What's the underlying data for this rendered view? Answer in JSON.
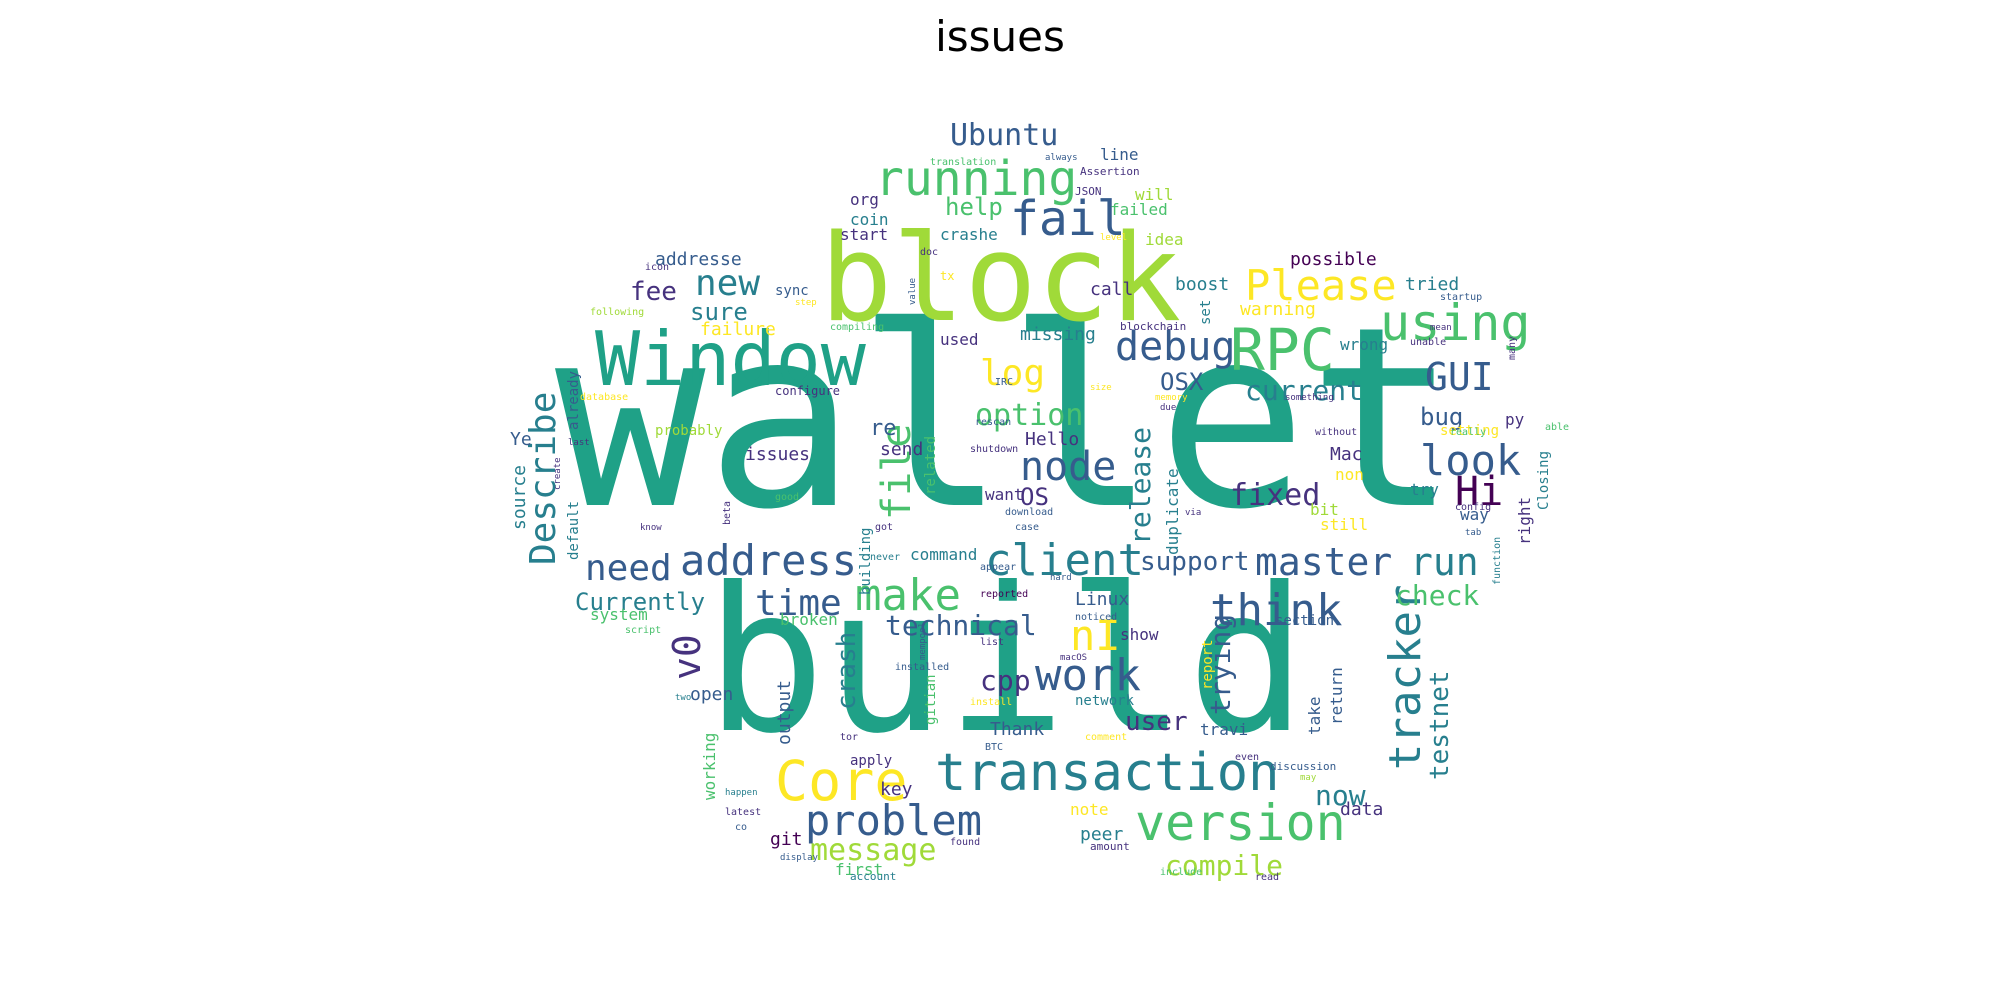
{
  "title": "issues",
  "palette": {
    "yellow": "#fde725",
    "lime": "#a0da39",
    "green": "#4ac16d",
    "teal": "#1fa187",
    "cyan": "#277f8e",
    "blue": "#365c8d",
    "indigo": "#46327e",
    "purple": "#440154"
  },
  "words": [
    {
      "text": "wallet",
      "weight": 1.0,
      "color": "teal"
    },
    {
      "text": "build",
      "weight": 0.86,
      "color": "teal"
    },
    {
      "text": "block",
      "weight": 0.6,
      "color": "lime"
    },
    {
      "text": "Window",
      "weight": 0.42,
      "color": "teal"
    },
    {
      "text": "transaction",
      "weight": 0.34,
      "color": "cyan"
    },
    {
      "text": "version",
      "weight": 0.3,
      "color": "green"
    },
    {
      "text": "problem",
      "weight": 0.28,
      "color": "blue"
    },
    {
      "text": "Core",
      "weight": 0.34,
      "color": "yellow"
    },
    {
      "text": "running",
      "weight": 0.3,
      "color": "green"
    },
    {
      "text": "RPC",
      "weight": 0.34,
      "color": "green"
    },
    {
      "text": "using",
      "weight": 0.3,
      "color": "green"
    },
    {
      "text": "Please",
      "weight": 0.26,
      "color": "yellow"
    },
    {
      "text": "fail",
      "weight": 0.28,
      "color": "blue"
    },
    {
      "text": "debug",
      "weight": 0.24,
      "color": "blue"
    },
    {
      "text": "address",
      "weight": 0.26,
      "color": "blue"
    },
    {
      "text": "client",
      "weight": 0.28,
      "color": "cyan"
    },
    {
      "text": "make",
      "weight": 0.28,
      "color": "green"
    },
    {
      "text": "master",
      "weight": 0.24,
      "color": "blue"
    },
    {
      "text": "think",
      "weight": 0.26,
      "color": "blue"
    },
    {
      "text": "work",
      "weight": 0.26,
      "color": "blue"
    },
    {
      "text": "node",
      "weight": 0.22,
      "color": "blue"
    },
    {
      "text": "look",
      "weight": 0.22,
      "color": "blue"
    },
    {
      "text": "run",
      "weight": 0.22,
      "color": "cyan"
    },
    {
      "text": "tracker",
      "weight": 0.24,
      "color": "cyan"
    },
    {
      "text": "Describe",
      "weight": 0.2,
      "color": "cyan"
    },
    {
      "text": "file",
      "weight": 0.24,
      "color": "green"
    },
    {
      "text": "new",
      "weight": 0.2,
      "color": "cyan"
    },
    {
      "text": "need",
      "weight": 0.2,
      "color": "blue"
    },
    {
      "text": "time",
      "weight": 0.2,
      "color": "blue"
    },
    {
      "text": "log",
      "weight": 0.2,
      "color": "yellow"
    },
    {
      "text": "GUI",
      "weight": 0.2,
      "color": "blue"
    },
    {
      "text": "Hi",
      "weight": 0.2,
      "color": "purple"
    },
    {
      "text": "v0",
      "weight": 0.2,
      "color": "indigo"
    },
    {
      "text": "nI",
      "weight": 0.2,
      "color": "yellow"
    },
    {
      "text": "Ubuntu",
      "weight": 0.16,
      "color": "blue"
    },
    {
      "text": "option",
      "weight": 0.16,
      "color": "green"
    },
    {
      "text": "message",
      "weight": 0.16,
      "color": "lime"
    },
    {
      "text": "release",
      "weight": 0.16,
      "color": "cyan"
    },
    {
      "text": "fixed",
      "weight": 0.15,
      "color": "indigo"
    },
    {
      "text": "current",
      "weight": 0.14,
      "color": "cyan"
    },
    {
      "text": "support",
      "weight": 0.14,
      "color": "blue"
    },
    {
      "text": "technical",
      "weight": 0.14,
      "color": "blue"
    },
    {
      "text": "Currently",
      "weight": 0.13,
      "color": "cyan"
    },
    {
      "text": "trying",
      "weight": 0.14,
      "color": "blue"
    },
    {
      "text": "compile",
      "weight": 0.14,
      "color": "lime"
    },
    {
      "text": "testnet",
      "weight": 0.13,
      "color": "cyan"
    },
    {
      "text": "check",
      "weight": 0.13,
      "color": "green"
    },
    {
      "text": "crash",
      "weight": 0.13,
      "color": "cyan"
    },
    {
      "text": "cpp",
      "weight": 0.13,
      "color": "indigo"
    },
    {
      "text": "user",
      "weight": 0.13,
      "color": "indigo"
    },
    {
      "text": "now",
      "weight": 0.13,
      "color": "cyan"
    },
    {
      "text": "fee",
      "weight": 0.12,
      "color": "indigo"
    },
    {
      "text": "sure",
      "weight": 0.12,
      "color": "cyan"
    },
    {
      "text": "OSX",
      "weight": 0.12,
      "color": "blue"
    },
    {
      "text": "OS",
      "weight": 0.12,
      "color": "indigo"
    },
    {
      "text": "help",
      "weight": 0.11,
      "color": "green"
    },
    {
      "text": "bug",
      "weight": 0.11,
      "color": "blue"
    },
    {
      "text": "re",
      "weight": 0.1,
      "color": "blue"
    },
    {
      "text": "Mac",
      "weight": 0.08,
      "color": "indigo"
    },
    {
      "text": "Linux",
      "weight": 0.08,
      "color": "blue"
    },
    {
      "text": "Thank",
      "weight": 0.08,
      "color": "blue"
    },
    {
      "text": "key",
      "weight": 0.08,
      "color": "indigo"
    },
    {
      "text": "peer",
      "weight": 0.08,
      "color": "cyan"
    },
    {
      "text": "data",
      "weight": 0.08,
      "color": "indigo"
    },
    {
      "text": "git",
      "weight": 0.08,
      "color": "purple"
    },
    {
      "text": "send",
      "weight": 0.08,
      "color": "indigo"
    },
    {
      "text": "Hello",
      "weight": 0.08,
      "color": "indigo"
    },
    {
      "text": "issues",
      "weight": 0.08,
      "color": "indigo"
    },
    {
      "text": "open",
      "weight": 0.08,
      "color": "blue"
    },
    {
      "text": "output",
      "weight": 0.08,
      "color": "blue"
    },
    {
      "text": "working",
      "weight": 0.07,
      "color": "green"
    },
    {
      "text": "source",
      "weight": 0.08,
      "color": "cyan"
    },
    {
      "text": "Ye",
      "weight": 0.08,
      "color": "blue"
    },
    {
      "text": "addresse",
      "weight": 0.08,
      "color": "blue"
    },
    {
      "text": "failure",
      "weight": 0.08,
      "color": "yellow"
    },
    {
      "text": "used",
      "weight": 0.08,
      "color": "indigo"
    },
    {
      "text": "missing",
      "weight": 0.08,
      "color": "cyan"
    },
    {
      "text": "call",
      "weight": 0.08,
      "color": "indigo"
    },
    {
      "text": "boost",
      "weight": 0.08,
      "color": "cyan"
    },
    {
      "text": "warning",
      "weight": 0.07,
      "color": "yellow"
    },
    {
      "text": "tried",
      "weight": 0.08,
      "color": "cyan"
    },
    {
      "text": "possible",
      "weight": 0.08,
      "color": "purple"
    },
    {
      "text": "idea",
      "weight": 0.08,
      "color": "lime"
    },
    {
      "text": "will",
      "weight": 0.07,
      "color": "lime"
    },
    {
      "text": "failed",
      "weight": 0.07,
      "color": "green"
    },
    {
      "text": "line",
      "weight": 0.07,
      "color": "blue"
    },
    {
      "text": "org",
      "weight": 0.07,
      "color": "indigo"
    },
    {
      "text": "coin",
      "weight": 0.07,
      "color": "cyan"
    },
    {
      "text": "start",
      "weight": 0.07,
      "color": "indigo"
    },
    {
      "text": "crashe",
      "weight": 0.07,
      "color": "cyan"
    },
    {
      "text": "sync",
      "weight": 0.06,
      "color": "blue"
    },
    {
      "text": "wrong",
      "weight": 0.07,
      "color": "cyan"
    },
    {
      "text": "py",
      "weight": 0.07,
      "color": "indigo"
    },
    {
      "text": "non",
      "weight": 0.07,
      "color": "yellow"
    },
    {
      "text": "bit",
      "weight": 0.07,
      "color": "lime"
    },
    {
      "text": "still",
      "weight": 0.07,
      "color": "yellow"
    },
    {
      "text": "way",
      "weight": 0.07,
      "color": "blue"
    },
    {
      "text": "try",
      "weight": 0.07,
      "color": "cyan"
    },
    {
      "text": "command",
      "weight": 0.07,
      "color": "cyan"
    },
    {
      "text": "want",
      "weight": 0.07,
      "color": "indigo"
    },
    {
      "text": "show",
      "weight": 0.07,
      "color": "indigo"
    },
    {
      "text": "broken",
      "weight": 0.07,
      "color": "green"
    },
    {
      "text": "system",
      "weight": 0.07,
      "color": "green"
    },
    {
      "text": "network",
      "weight": 0.06,
      "color": "cyan"
    },
    {
      "text": "travi",
      "weight": 0.07,
      "color": "blue"
    },
    {
      "text": "section",
      "weight": 0.06,
      "color": "blue"
    },
    {
      "text": "note",
      "weight": 0.07,
      "color": "yellow"
    },
    {
      "text": "first",
      "weight": 0.07,
      "color": "green"
    },
    {
      "text": "apply",
      "weight": 0.06,
      "color": "indigo"
    },
    {
      "text": "probably",
      "weight": 0.06,
      "color": "lime"
    },
    {
      "text": "set",
      "weight": 0.06,
      "color": "cyan"
    },
    {
      "text": "setting",
      "weight": 0.06,
      "color": "yellow"
    },
    {
      "text": "right",
      "weight": 0.07,
      "color": "indigo"
    },
    {
      "text": "Closing",
      "weight": 0.06,
      "color": "cyan"
    },
    {
      "text": "already",
      "weight": 0.06,
      "color": "blue"
    },
    {
      "text": "default",
      "weight": 0.06,
      "color": "cyan"
    },
    {
      "text": "duplicate",
      "weight": 0.07,
      "color": "cyan"
    },
    {
      "text": "building",
      "weight": 0.06,
      "color": "cyan"
    },
    {
      "text": "related",
      "weight": 0.06,
      "color": "green"
    },
    {
      "text": "gitian",
      "weight": 0.06,
      "color": "green"
    },
    {
      "text": "report",
      "weight": 0.06,
      "color": "yellow"
    },
    {
      "text": "take",
      "weight": 0.06,
      "color": "blue"
    },
    {
      "text": "return",
      "weight": 0.06,
      "color": "blue"
    },
    {
      "text": "configure",
      "weight": 0.05,
      "color": "indigo"
    },
    {
      "text": "tx",
      "weight": 0.05,
      "color": "yellow"
    },
    {
      "text": "Assertion",
      "weight": 0.04,
      "color": "indigo"
    },
    {
      "text": "JSON",
      "weight": 0.04,
      "color": "indigo"
    },
    {
      "text": "translation",
      "weight": 0.04,
      "color": "green"
    },
    {
      "text": "always",
      "weight": 0.04,
      "color": "blue"
    },
    {
      "text": "blockchain",
      "weight": 0.04,
      "color": "indigo"
    },
    {
      "text": "compiling",
      "weight": 0.04,
      "color": "green"
    },
    {
      "text": "following",
      "weight": 0.04,
      "color": "lime"
    },
    {
      "text": "database",
      "weight": 0.04,
      "color": "yellow"
    },
    {
      "text": "shutdown",
      "weight": 0.04,
      "color": "indigo"
    },
    {
      "text": "download",
      "weight": 0.04,
      "color": "blue"
    },
    {
      "text": "good",
      "weight": 0.04,
      "color": "green"
    },
    {
      "text": "beta",
      "weight": 0.04,
      "color": "indigo"
    },
    {
      "text": "never",
      "weight": 0.04,
      "color": "cyan"
    },
    {
      "text": "appear",
      "weight": 0.04,
      "color": "blue"
    },
    {
      "text": "reported",
      "weight": 0.04,
      "color": "purple"
    },
    {
      "text": "script",
      "weight": 0.04,
      "color": "green"
    },
    {
      "text": "install",
      "weight": 0.04,
      "color": "yellow"
    },
    {
      "text": "comment",
      "weight": 0.04,
      "color": "yellow"
    },
    {
      "text": "discussion",
      "weight": 0.04,
      "color": "blue"
    },
    {
      "text": "amount",
      "weight": 0.04,
      "color": "indigo"
    },
    {
      "text": "include",
      "weight": 0.04,
      "color": "green"
    },
    {
      "text": "read",
      "weight": 0.04,
      "color": "indigo"
    },
    {
      "text": "account",
      "weight": 0.04,
      "color": "cyan"
    },
    {
      "text": "found",
      "weight": 0.04,
      "color": "indigo"
    },
    {
      "text": "latest",
      "weight": 0.04,
      "color": "indigo"
    },
    {
      "text": "display",
      "weight": 0.04,
      "color": "blue"
    },
    {
      "text": "startup",
      "weight": 0.04,
      "color": "blue"
    },
    {
      "text": "unable",
      "weight": 0.04,
      "color": "indigo"
    },
    {
      "text": "without",
      "weight": 0.04,
      "color": "indigo"
    },
    {
      "text": "really",
      "weight": 0.04,
      "color": "green"
    },
    {
      "text": "config",
      "weight": 0.04,
      "color": "indigo"
    },
    {
      "text": "function",
      "weight": 0.04,
      "color": "cyan"
    },
    {
      "text": "able",
      "weight": 0.04,
      "color": "green"
    },
    {
      "text": "many",
      "weight": 0.04,
      "color": "indigo"
    },
    {
      "text": "mean",
      "weight": 0.04,
      "color": "indigo"
    },
    {
      "text": "something",
      "weight": 0.04,
      "color": "indigo"
    },
    {
      "text": "value",
      "weight": 0.04,
      "color": "blue"
    },
    {
      "text": "doc",
      "weight": 0.04,
      "color": "indigo"
    },
    {
      "text": "icon",
      "weight": 0.04,
      "color": "indigo"
    },
    {
      "text": "step",
      "weight": 0.04,
      "color": "yellow"
    },
    {
      "text": "IRC",
      "weight": 0.04,
      "color": "blue"
    },
    {
      "text": "rescan",
      "weight": 0.04,
      "color": "blue"
    },
    {
      "text": "size",
      "weight": 0.04,
      "color": "yellow"
    },
    {
      "text": "memory",
      "weight": 0.04,
      "color": "yellow"
    },
    {
      "text": "via",
      "weight": 0.04,
      "color": "indigo"
    },
    {
      "text": "tab",
      "weight": 0.04,
      "color": "blue"
    },
    {
      "text": "tor",
      "weight": 0.04,
      "color": "indigo"
    },
    {
      "text": "BTC",
      "weight": 0.04,
      "color": "blue"
    },
    {
      "text": "even",
      "weight": 0.04,
      "color": "indigo"
    },
    {
      "text": "may",
      "weight": 0.04,
      "color": "lime"
    },
    {
      "text": "two",
      "weight": 0.04,
      "color": "cyan"
    },
    {
      "text": "happen",
      "weight": 0.04,
      "color": "cyan"
    },
    {
      "text": "co",
      "weight": 0.04,
      "color": "blue"
    },
    {
      "text": "got",
      "weight": 0.04,
      "color": "indigo"
    },
    {
      "text": "case",
      "weight": 0.04,
      "color": "blue"
    },
    {
      "text": "list",
      "weight": 0.04,
      "color": "indigo"
    },
    {
      "text": "installed",
      "weight": 0.04,
      "color": "blue"
    },
    {
      "text": "mempool",
      "weight": 0.04,
      "color": "blue"
    },
    {
      "text": "noticed",
      "weight": 0.04,
      "color": "blue"
    },
    {
      "text": "create",
      "weight": 0.04,
      "color": "indigo"
    },
    {
      "text": "know",
      "weight": 0.04,
      "color": "indigo"
    },
    {
      "text": "last",
      "weight": 0.04,
      "color": "indigo"
    },
    {
      "text": "level",
      "weight": 0.04,
      "color": "yellow"
    },
    {
      "text": "due",
      "weight": 0.04,
      "color": "indigo"
    },
    {
      "text": "hard",
      "weight": 0.04,
      "color": "blue"
    },
    {
      "text": "macOS",
      "weight": 0.04,
      "color": "indigo"
    }
  ]
}
